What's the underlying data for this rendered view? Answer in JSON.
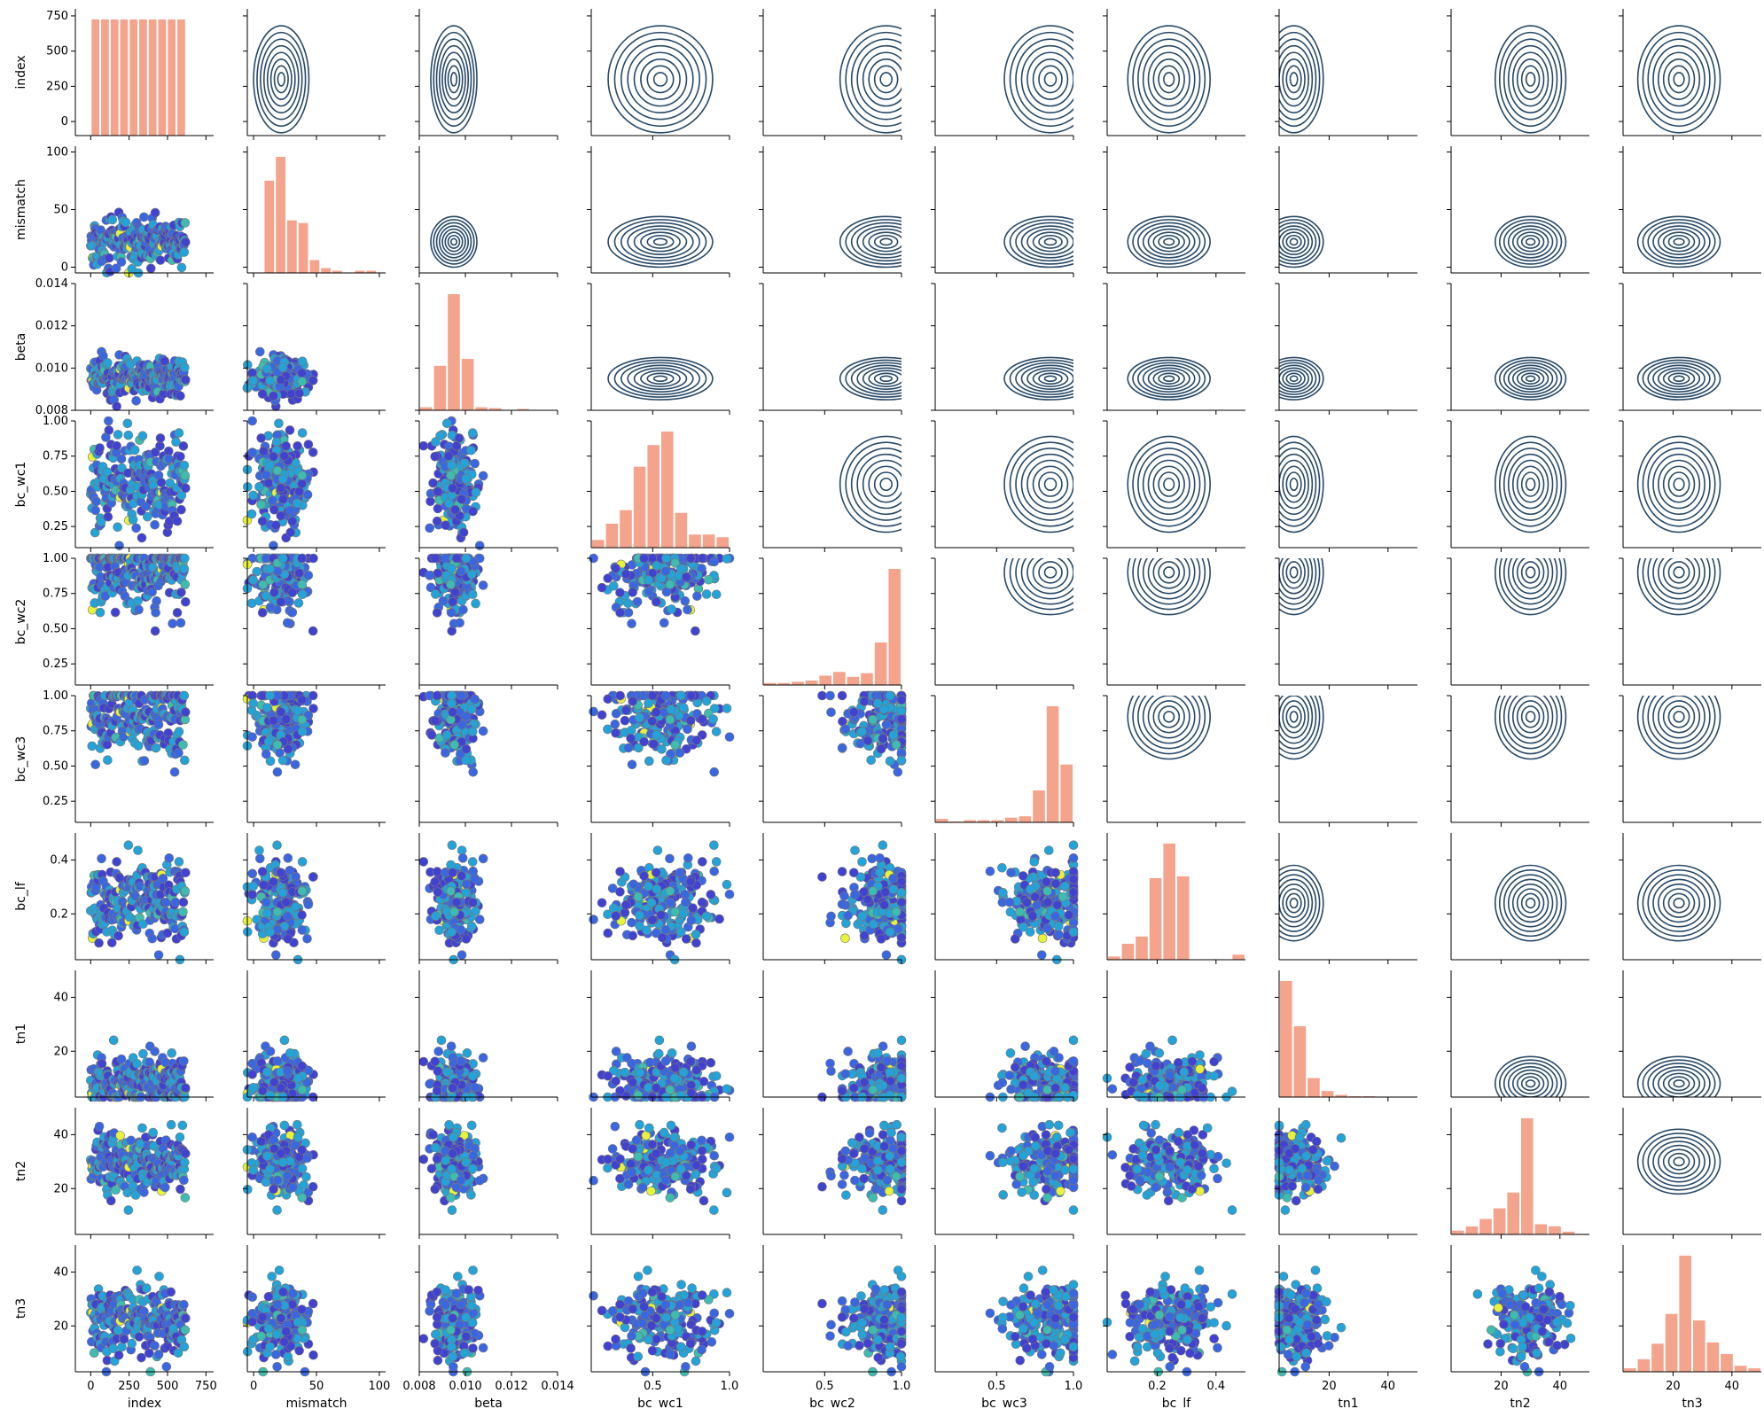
{
  "chart_data": {
    "type": "pairgrid",
    "variables": [
      "index",
      "mismatch",
      "beta",
      "bc_wc1",
      "bc_wc2",
      "bc_wc3",
      "bc_lf",
      "tn1",
      "tn2",
      "tn3"
    ],
    "axes": {
      "index": {
        "range": [
          -100,
          800
        ],
        "ticks": [
          0,
          250,
          500,
          750
        ],
        "tick_labels": [
          "0",
          "250",
          "500",
          "750"
        ],
        "y_ticks": [
          0,
          250,
          500,
          750
        ],
        "y_tick_labels": [
          "0",
          "250",
          "500",
          "750"
        ]
      },
      "mismatch": {
        "range": [
          -5,
          105
        ],
        "ticks": [
          0,
          50,
          100
        ],
        "tick_labels": [
          "0",
          "50",
          "100"
        ],
        "y_ticks": [
          0,
          50,
          100
        ],
        "y_tick_labels": [
          "0",
          "50",
          "100"
        ]
      },
      "beta": {
        "range": [
          0.008,
          0.014
        ],
        "ticks": [
          0.008,
          0.01,
          0.012,
          0.014
        ],
        "tick_labels": [
          "0.008",
          "0.010",
          "0.012",
          "0.014"
        ],
        "y_ticks": [
          0.008,
          0.01,
          0.012,
          0.014
        ],
        "y_tick_labels": [
          "0.008",
          "0.010",
          "0.012",
          "0.014"
        ]
      },
      "bc_wc1": {
        "range": [
          0.1,
          1.0
        ],
        "ticks": [
          0.5,
          1.0
        ],
        "tick_labels": [
          "0.5",
          "1.0"
        ],
        "y_ticks": [
          0.25,
          0.5,
          0.75,
          1.0
        ],
        "y_tick_labels": [
          "0.25",
          "0.50",
          "0.75",
          "1.00"
        ]
      },
      "bc_wc2": {
        "range": [
          0.1,
          1.0
        ],
        "ticks": [
          0.5,
          1.0
        ],
        "tick_labels": [
          "0.5",
          "1.0"
        ],
        "y_ticks": [
          0.25,
          0.5,
          0.75,
          1.0
        ],
        "y_tick_labels": [
          "0.25",
          "0.50",
          "0.75",
          "1.00"
        ]
      },
      "bc_wc3": {
        "range": [
          0.1,
          1.0
        ],
        "ticks": [
          0.5,
          1.0
        ],
        "tick_labels": [
          "0.5",
          "1.0"
        ],
        "y_ticks": [
          0.25,
          0.5,
          0.75,
          1.0
        ],
        "y_tick_labels": [
          "0.25",
          "0.50",
          "0.75",
          "1.00"
        ]
      },
      "bc_lf": {
        "range": [
          0.03,
          0.5
        ],
        "ticks": [
          0.2,
          0.4
        ],
        "tick_labels": [
          "0.2",
          "0.4"
        ],
        "y_ticks": [
          0.2,
          0.4
        ],
        "y_tick_labels": [
          "0.2",
          "0.4"
        ]
      },
      "tn1": {
        "range": [
          3,
          50
        ],
        "ticks": [
          20,
          40
        ],
        "tick_labels": [
          "20",
          "40"
        ],
        "y_ticks": [
          20,
          40
        ],
        "y_tick_labels": [
          "20",
          "40"
        ]
      },
      "tn2": {
        "range": [
          3,
          50
        ],
        "ticks": [
          20,
          40
        ],
        "tick_labels": [
          "20",
          "40"
        ],
        "y_ticks": [
          20,
          40
        ],
        "y_tick_labels": [
          "20",
          "40"
        ]
      },
      "tn3": {
        "range": [
          3,
          50
        ],
        "ticks": [
          20,
          40
        ],
        "tick_labels": [
          "20",
          "40"
        ],
        "y_ticks": [
          20,
          40
        ],
        "y_tick_labels": [
          "20",
          "40"
        ]
      }
    },
    "diagonal": {
      "type": "histogram",
      "color": "#f4a38c",
      "bins": {
        "index": {
          "edges": [
            0,
            62,
            124,
            186,
            248,
            310,
            372,
            434,
            496,
            558,
            620
          ],
          "heights": [
            10,
            10,
            10,
            10,
            10,
            10,
            10,
            10,
            10,
            10
          ]
        },
        "mismatch": {
          "edges": [
            8,
            17,
            26,
            35,
            44,
            53,
            62,
            71,
            80,
            89,
            98
          ],
          "heights": [
            35,
            44,
            20,
            19,
            5,
            2,
            1,
            0,
            1,
            1
          ]
        },
        "beta": {
          "edges": [
            0.008,
            0.0086,
            0.0092,
            0.0098,
            0.0104,
            0.011,
            0.0116,
            0.0122,
            0.0128,
            0.0134,
            0.014
          ],
          "heights": [
            4,
            52,
            135,
            60,
            4,
            3,
            0,
            2,
            0,
            1
          ]
        },
        "bc_wc1": {
          "edges": [
            0.1,
            0.19,
            0.28,
            0.37,
            0.46,
            0.55,
            0.64,
            0.73,
            0.82,
            0.91,
            1.0
          ],
          "heights": [
            3,
            9,
            14,
            30,
            38,
            43,
            13,
            5,
            5,
            4
          ]
        },
        "bc_wc2": {
          "edges": [
            0.1,
            0.19,
            0.28,
            0.37,
            0.46,
            0.55,
            0.64,
            0.73,
            0.82,
            0.91,
            1.0
          ],
          "heights": [
            2,
            2,
            3,
            4,
            8,
            11,
            7,
            10,
            35,
            95
          ]
        },
        "bc_wc3": {
          "edges": [
            0.1,
            0.19,
            0.28,
            0.37,
            0.46,
            0.55,
            0.64,
            0.73,
            0.82,
            0.91,
            1.0
          ],
          "heights": [
            3,
            1,
            2,
            2,
            2,
            4,
            5,
            25,
            90,
            45
          ]
        },
        "bc_lf": {
          "edges": [
            0.03,
            0.077,
            0.124,
            0.171,
            0.218,
            0.265,
            0.312,
            0.359,
            0.406,
            0.453,
            0.5
          ],
          "heights": [
            2,
            9,
            13,
            45,
            64,
            46,
            0,
            0,
            0,
            3
          ]
        },
        "tn1": {
          "edges": [
            3,
            7.7,
            12.4,
            17.1,
            21.8,
            26.5,
            31.2,
            35.9,
            40.6,
            45.3,
            50
          ],
          "heights": [
            180,
            110,
            30,
            10,
            4,
            2,
            2,
            1,
            1,
            1
          ]
        },
        "tn2": {
          "edges": [
            3,
            7.7,
            12.4,
            17.1,
            21.8,
            26.5,
            31.2,
            35.9,
            40.6,
            45.3,
            50
          ],
          "heights": [
            4,
            8,
            15,
            25,
            40,
            110,
            10,
            8,
            3,
            1
          ]
        },
        "tn3": {
          "edges": [
            3,
            7.7,
            12.4,
            17.1,
            21.8,
            26.5,
            31.2,
            35.9,
            40.6,
            45.3,
            50
          ],
          "heights": [
            3,
            10,
            22,
            45,
            90,
            40,
            23,
            14,
            5,
            3
          ]
        }
      }
    },
    "lower": {
      "type": "scatter",
      "colormap": "viridis-like",
      "edgecolor": "#777777"
    },
    "upper": {
      "type": "kde",
      "color": "#1d3f5e",
      "levels": 8
    },
    "marginals": {
      "index": {
        "center": 300,
        "spread": 190
      },
      "mismatch": {
        "center": 22,
        "spread": 11
      },
      "beta": {
        "center": 0.0095,
        "spread": 0.0005
      },
      "bc_wc1": {
        "center": 0.55,
        "spread": 0.17
      },
      "bc_wc2": {
        "center": 0.9,
        "spread": 0.15
      },
      "bc_wc3": {
        "center": 0.85,
        "spread": 0.15
      },
      "bc_lf": {
        "center": 0.24,
        "spread": 0.07
      },
      "tn1": {
        "center": 8,
        "spread": 5
      },
      "tn2": {
        "center": 30,
        "spread": 6
      },
      "tn3": {
        "center": 22,
        "spread": 7
      }
    }
  }
}
